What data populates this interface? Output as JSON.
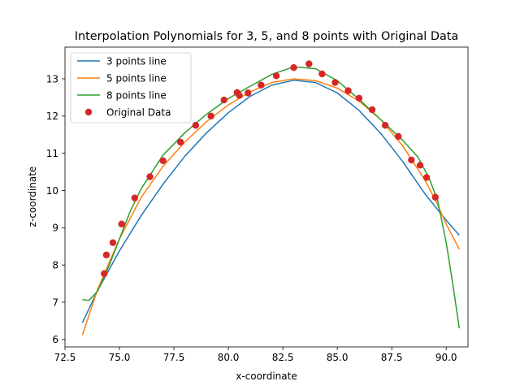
{
  "chart_data": {
    "type": "line",
    "title": "Interpolation Polynomials for 3, 5, and 8 points with Original Data",
    "xlabel": "x-coordinate",
    "ylabel": "z-coordinate",
    "xlim": [
      72.5,
      91.0
    ],
    "ylim": [
      5.8,
      13.85
    ],
    "xticks": [
      "72.5",
      "75.0",
      "77.5",
      "80.0",
      "82.5",
      "85.0",
      "87.5",
      "90.0"
    ],
    "yticks": [
      "6",
      "7",
      "8",
      "9",
      "10",
      "11",
      "12",
      "13"
    ],
    "grid": false,
    "legend_position": "upper-left",
    "series": [
      {
        "name": "3 points line",
        "color": "#1f77b4",
        "kind": "line",
        "x": [
          73.3,
          74.0,
          75.0,
          76.0,
          77.0,
          78.0,
          79.0,
          80.0,
          81.0,
          82.0,
          83.0,
          84.0,
          85.0,
          86.0,
          87.0,
          88.0,
          89.0,
          90.0,
          90.6
        ],
        "y": [
          6.45,
          7.32,
          8.38,
          9.33,
          10.17,
          10.92,
          11.55,
          12.09,
          12.53,
          12.83,
          12.96,
          12.9,
          12.62,
          12.15,
          11.53,
          10.78,
          9.93,
          9.2,
          8.8
        ]
      },
      {
        "name": "5 points line",
        "color": "#ff7f0e",
        "kind": "line",
        "x": [
          73.3,
          74.0,
          75.0,
          76.0,
          77.0,
          78.0,
          79.0,
          80.0,
          81.0,
          82.0,
          83.0,
          84.0,
          85.0,
          86.0,
          87.0,
          88.0,
          89.0,
          89.5,
          90.0,
          90.6
        ],
        "y": [
          6.12,
          7.35,
          8.7,
          9.82,
          10.65,
          11.3,
          11.85,
          12.3,
          12.65,
          12.9,
          13.0,
          12.95,
          12.75,
          12.4,
          11.9,
          11.2,
          10.3,
          9.75,
          9.1,
          8.42
        ]
      },
      {
        "name": "8 points line",
        "color": "#2ca02c",
        "kind": "line",
        "x": [
          73.3,
          73.6,
          74.0,
          74.5,
          75.0,
          75.5,
          76.0,
          77.0,
          78.0,
          79.0,
          80.0,
          81.0,
          82.0,
          83.0,
          84.0,
          85.0,
          86.0,
          87.0,
          88.0,
          88.7,
          89.2,
          89.6,
          90.0,
          90.3,
          90.6
        ],
        "y": [
          7.07,
          7.05,
          7.3,
          7.95,
          8.7,
          9.45,
          10.05,
          10.95,
          11.55,
          12.05,
          12.47,
          12.8,
          13.12,
          13.32,
          13.27,
          12.95,
          12.45,
          11.9,
          11.35,
          10.9,
          10.35,
          9.75,
          8.6,
          7.5,
          6.3
        ]
      },
      {
        "name": "Original Data",
        "color": "#d62728",
        "kind": "scatter",
        "x": [
          74.3,
          74.4,
          74.7,
          75.1,
          75.7,
          76.4,
          77.0,
          77.8,
          78.5,
          79.2,
          79.8,
          80.4,
          80.5,
          80.9,
          81.5,
          82.2,
          83.0,
          83.7,
          84.3,
          84.9,
          85.5,
          86.0,
          86.6,
          87.2,
          87.8,
          88.4,
          88.8,
          89.1,
          89.5
        ],
        "y": [
          7.77,
          8.27,
          8.6,
          9.1,
          9.8,
          10.37,
          10.8,
          11.3,
          11.75,
          12.0,
          12.43,
          12.63,
          12.55,
          12.62,
          12.83,
          13.08,
          13.3,
          13.4,
          13.13,
          12.9,
          12.68,
          12.48,
          12.17,
          11.75,
          11.45,
          10.82,
          10.68,
          10.35,
          9.82
        ]
      }
    ]
  }
}
